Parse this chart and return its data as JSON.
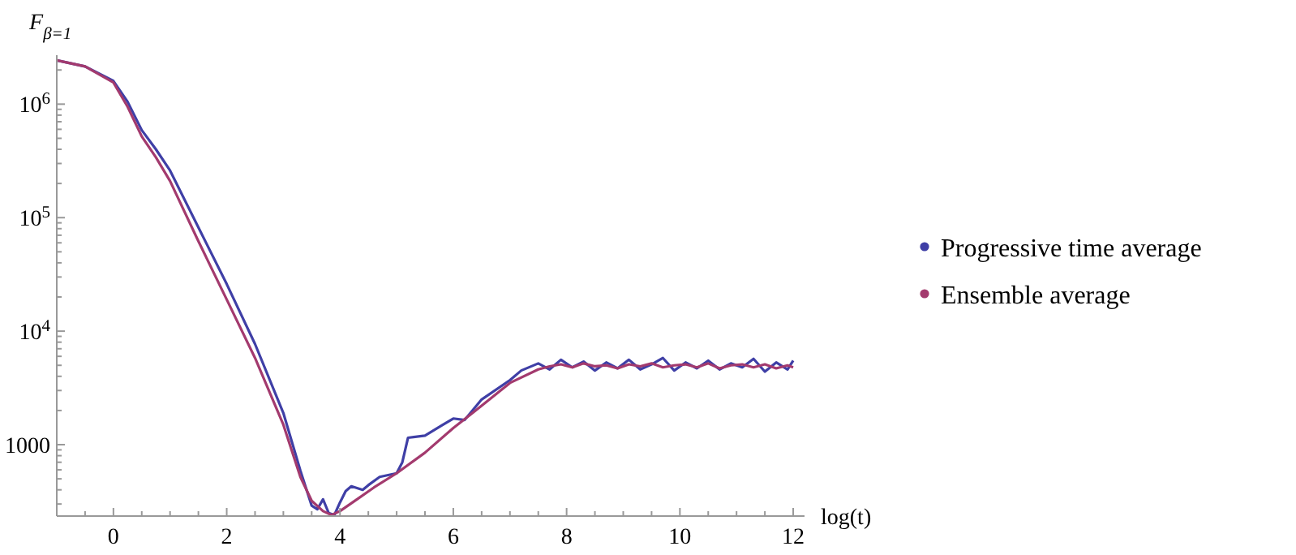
{
  "chart_data": {
    "type": "line",
    "ylabel": "F$_{β=1}$",
    "xlabel": "log(t)",
    "log": true,
    "legend": "right",
    "grid": false,
    "xlim": [
      -1,
      12.2
    ],
    "ylim": [
      235,
      2700000
    ],
    "xticks": [
      0,
      2,
      4,
      6,
      8,
      10,
      12,
      {
        "value": -0.5,
        "label": null
      },
      {
        "value": 0.5,
        "label": null
      },
      {
        "value": 1,
        "label": null
      },
      {
        "value": 1.5,
        "label": null
      },
      {
        "value": 2.5,
        "label": null
      },
      {
        "value": 3,
        "label": null
      },
      {
        "value": 3.5,
        "label": null
      },
      {
        "value": 4.5,
        "label": null
      },
      {
        "value": 5,
        "label": null
      },
      {
        "value": 5.5,
        "label": null
      },
      {
        "value": 6.5,
        "label": null
      },
      {
        "value": 7,
        "label": null
      },
      {
        "value": 7.5,
        "label": null
      },
      {
        "value": 8.5,
        "label": null
      },
      {
        "value": 9,
        "label": null
      },
      {
        "value": 9.5,
        "label": null
      },
      {
        "value": 10.5,
        "label": null
      },
      {
        "value": 11,
        "label": null
      },
      {
        "value": 11.5,
        "label": null
      }
    ],
    "yticks": [
      1000,
      {
        "value": 10000,
        "label": "10$^{4}$"
      },
      {
        "value": 100000,
        "label": "10$^{5}$"
      },
      {
        "value": 1000000,
        "label": "10$^{6}$"
      },
      {
        "value": 300,
        "label": null
      },
      {
        "value": 400,
        "label": null
      },
      {
        "value": 500,
        "label": null
      },
      {
        "value": 600,
        "label": null
      },
      {
        "value": 700,
        "label": null
      },
      {
        "value": 800,
        "label": null
      },
      {
        "value": 900,
        "label": null
      },
      {
        "value": 2000,
        "label": null
      },
      {
        "value": 3000,
        "label": null
      },
      {
        "value": 4000,
        "label": null
      },
      {
        "value": 5000,
        "label": null
      },
      {
        "value": 6000,
        "label": null
      },
      {
        "value": 7000,
        "label": null
      },
      {
        "value": 8000,
        "label": null
      },
      {
        "value": 9000,
        "label": null
      },
      {
        "value": 20000,
        "label": null
      },
      {
        "value": 30000,
        "label": null
      },
      {
        "value": 40000,
        "label": null
      },
      {
        "value": 50000,
        "label": null
      },
      {
        "value": 60000,
        "label": null
      },
      {
        "value": 70000,
        "label": null
      },
      {
        "value": 80000,
        "label": null
      },
      {
        "value": 90000,
        "label": null
      },
      {
        "value": 200000,
        "label": null
      },
      {
        "value": 300000,
        "label": null
      },
      {
        "value": 400000,
        "label": null
      },
      {
        "value": 500000,
        "label": null
      },
      {
        "value": 600000,
        "label": null
      },
      {
        "value": 700000,
        "label": null
      },
      {
        "value": 800000,
        "label": null
      },
      {
        "value": 900000,
        "label": null
      },
      {
        "value": 2000000,
        "label": null
      }
    ],
    "series": [
      {
        "name": "Progressive time average",
        "color": "#3f3fa6",
        "x": [
          -1,
          -0.5,
          0,
          0.25,
          0.5,
          0.75,
          1,
          1.5,
          2,
          2.5,
          3,
          3.3,
          3.5,
          3.6,
          3.7,
          3.8,
          3.9,
          4,
          4.1,
          4.2,
          4.4,
          4.5,
          4.7,
          5,
          5.1,
          5.2,
          5.5,
          5.8,
          6,
          6.2,
          6.5,
          7,
          7.2,
          7.5,
          7.7,
          7.9,
          8.1,
          8.3,
          8.5,
          8.7,
          8.9,
          9.1,
          9.3,
          9.5,
          9.7,
          9.9,
          10.1,
          10.3,
          10.5,
          10.7,
          10.9,
          11.1,
          11.3,
          11.5,
          11.7,
          11.9,
          12
        ],
        "values": [
          2430000,
          2150000,
          1600000,
          1050000,
          590000,
          400000,
          260000,
          82000,
          26000,
          7700,
          1900,
          590,
          290,
          270,
          330,
          250,
          240,
          310,
          390,
          430,
          400,
          440,
          520,
          560,
          700,
          1150,
          1200,
          1480,
          1700,
          1650,
          2500,
          3700,
          4500,
          5200,
          4600,
          5600,
          4800,
          5400,
          4500,
          5300,
          4700,
          5600,
          4600,
          5100,
          5800,
          4500,
          5300,
          4700,
          5500,
          4600,
          5200,
          4800,
          5700,
          4400,
          5300,
          4600,
          5500
        ]
      },
      {
        "name": "Ensemble average",
        "color": "#a33a6e",
        "x": [
          -1,
          -0.5,
          0,
          0.25,
          0.5,
          0.75,
          1,
          1.5,
          2,
          2.5,
          3,
          3.3,
          3.5,
          3.7,
          3.85,
          4,
          4.3,
          4.6,
          5,
          5.5,
          6,
          6.5,
          7,
          7.5,
          7.7,
          7.9,
          8.1,
          8.3,
          8.5,
          8.7,
          8.9,
          9.1,
          9.3,
          9.5,
          9.7,
          9.9,
          10.1,
          10.3,
          10.5,
          10.7,
          10.9,
          11.1,
          11.3,
          11.5,
          11.7,
          11.9,
          12
        ],
        "values": [
          2430000,
          2150000,
          1550000,
          950000,
          520000,
          340000,
          210000,
          62000,
          19000,
          5800,
          1500,
          520,
          320,
          260,
          240,
          260,
          330,
          420,
          560,
          850,
          1400,
          2200,
          3500,
          4600,
          4900,
          5100,
          4800,
          5200,
          4900,
          5000,
          4700,
          5100,
          4900,
          5200,
          4800,
          5000,
          5100,
          4800,
          5200,
          4700,
          5000,
          5100,
          4800,
          5100,
          4700,
          5000,
          4800
        ]
      }
    ]
  }
}
